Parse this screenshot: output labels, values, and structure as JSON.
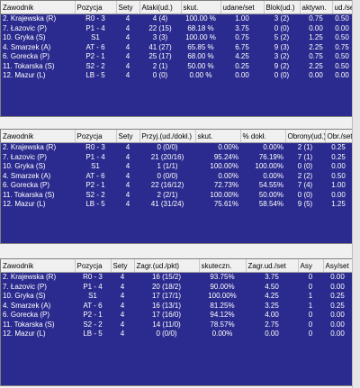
{
  "tables": [
    {
      "headers": [
        "Zawodnik",
        "Pozycja",
        "Sety",
        "Ataki(ud.)",
        "skut.",
        "udane/set",
        "Blok(ud.)",
        "aktywn.",
        "ud./set"
      ],
      "rows": [
        [
          "2. Krajewska (R)",
          "R0 - 3",
          "4",
          "4 (4)",
          "100.00 %",
          "1.00",
          "3 (2)",
          "0.75",
          "0.50"
        ],
        [
          "7. Łazovic (P)",
          "P1 - 4",
          "4",
          "22 (15)",
          "68.18 %",
          "3.75",
          "0 (0)",
          "0.00",
          "0.00"
        ],
        [
          "10. Gryka (S)",
          "S1",
          "4",
          "3 (3)",
          "100.00 %",
          "0.75",
          "5 (2)",
          "1.25",
          "0.50"
        ],
        [
          "4. Smarzek (A)",
          "AT - 6",
          "4",
          "41 (27)",
          "65.85 %",
          "6.75",
          "9 (3)",
          "2.25",
          "0.75"
        ],
        [
          "6. Gorecka (P)",
          "P2 - 1",
          "4",
          "25 (17)",
          "68.00 %",
          "4.25",
          "3 (2)",
          "0.75",
          "0.50"
        ],
        [
          "11. Tokarska (S)",
          "S2 - 2",
          "4",
          "2 (1)",
          "50.00 %",
          "0.25",
          "9 (2)",
          "2.25",
          "0.50"
        ],
        [
          "12. Mazur (L)",
          "LB - 5",
          "4",
          "0 (0)",
          "0.00 %",
          "0.00",
          "0 (0)",
          "0.00",
          "0.00"
        ]
      ]
    },
    {
      "headers": [
        "Zawodnik",
        "Pozycja",
        "Sety",
        "Przyj.(ud./dokł.)",
        "skut.",
        "% dokł.",
        "Obrony(ud.)",
        "Obr./set"
      ],
      "rows": [
        [
          "2. Krajewska (R)",
          "R0 - 3",
          "4",
          "0 (0/0)",
          "0.00%",
          "0.00%",
          "2 (1)",
          "0.25"
        ],
        [
          "7. Łazovic (P)",
          "P1 - 4",
          "4",
          "21 (20/16)",
          "95.24%",
          "76.19%",
          "7 (1)",
          "0.25"
        ],
        [
          "10. Gryka (S)",
          "S1",
          "4",
          "1 (1/1)",
          "100.00%",
          "100.00%",
          "0 (0)",
          "0.00"
        ],
        [
          "4. Smarzek (A)",
          "AT - 6",
          "4",
          "0 (0/0)",
          "0.00%",
          "0.00%",
          "2 (2)",
          "0.50"
        ],
        [
          "6. Gorecka (P)",
          "P2 - 1",
          "4",
          "22 (16/12)",
          "72.73%",
          "54.55%",
          "7 (4)",
          "1.00"
        ],
        [
          "11. Tokarska (S)",
          "S2 - 2",
          "4",
          "2 (2/1)",
          "100.00%",
          "50.00%",
          "0 (0)",
          "0.00"
        ],
        [
          "12. Mazur (L)",
          "LB - 5",
          "4",
          "41 (31/24)",
          "75.61%",
          "58.54%",
          "9 (5)",
          "1.25"
        ]
      ]
    },
    {
      "headers": [
        "Zawodnik",
        "Pozycja",
        "Sety",
        "Zagr.(ud./pkt)",
        "skuteczn.",
        "Zagr.ud./set",
        "Asy",
        "Asy/set"
      ],
      "rows": [
        [
          "2. Krajewska (R)",
          "R0 - 3",
          "4",
          "16 (15/2)",
          "93.75%",
          "3.75",
          "0",
          "0.00"
        ],
        [
          "7. Łazovic (P)",
          "P1 - 4",
          "4",
          "20 (18/2)",
          "90.00%",
          "4.50",
          "0",
          "0.00"
        ],
        [
          "10. Gryka (S)",
          "S1",
          "4",
          "17 (17/1)",
          "100.00%",
          "4.25",
          "1",
          "0.25"
        ],
        [
          "4. Smarzek (A)",
          "AT - 6",
          "4",
          "16 (13/1)",
          "81.25%",
          "3.25",
          "1",
          "0.25"
        ],
        [
          "6. Gorecka (P)",
          "P2 - 1",
          "4",
          "17 (16/0)",
          "94.12%",
          "4.00",
          "0",
          "0.00"
        ],
        [
          "11. Tokarska (S)",
          "S2 - 2",
          "4",
          "14 (11/0)",
          "78.57%",
          "2.75",
          "0",
          "0.00"
        ],
        [
          "12. Mazur (L)",
          "LB - 5",
          "4",
          "0 (0/0)",
          "0.00%",
          "0.00",
          "0",
          "0.00"
        ]
      ]
    }
  ]
}
